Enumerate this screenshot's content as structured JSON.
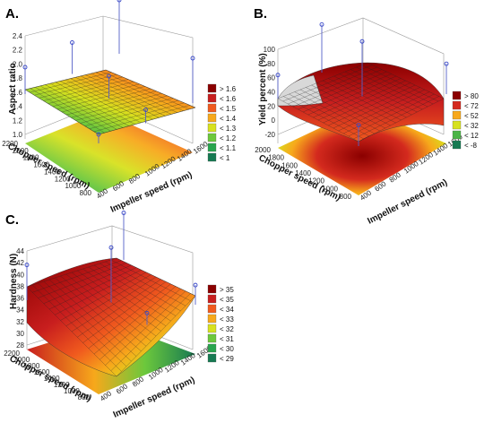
{
  "chart_data": [
    {
      "panel_label": "A.",
      "type": "surface",
      "xlabel": "Impeller speed (rpm)",
      "ylabel": "Chopper speed (rpm)",
      "zlabel": "Aspect ratio",
      "x_ticks": [
        "400",
        "600",
        "800",
        "1000",
        "1200",
        "1400",
        "1600"
      ],
      "y_ticks": [
        "800",
        "1000",
        "1200",
        "1400",
        "1600",
        "1800",
        "2000",
        "2200"
      ],
      "z_ticks": [
        "1.0",
        "1.2",
        "1.4",
        "1.6",
        "1.8",
        "2.0",
        "2.2",
        "2.4"
      ],
      "xlim": [
        400,
        1600
      ],
      "ylim": [
        800,
        2200
      ],
      "zlim": [
        1.0,
        2.4
      ],
      "legend": [
        "> 1.6",
        "< 1.6",
        "< 1.5",
        "< 1.4",
        "< 1.3",
        "< 1.2",
        "< 1.1",
        "< 1"
      ],
      "legend_colors": [
        "#8b0000",
        "#c81e1e",
        "#f05a1e",
        "#f7a81b",
        "#d7e11e",
        "#6cc83c",
        "#28a54e",
        "#167a52"
      ],
      "design_points": [
        {
          "x": 1600,
          "y": 800,
          "z": 2.0
        },
        {
          "x": 1600,
          "y": 2200,
          "z": 2.2
        },
        {
          "x": 400,
          "y": 2200,
          "z": 1.6
        },
        {
          "x": 400,
          "y": 800,
          "z": 1.2
        },
        {
          "x": 1000,
          "y": 1500,
          "z": 1.5
        },
        {
          "x": 1000,
          "y": 2200,
          "z": 1.7
        },
        {
          "x": 1000,
          "y": 800,
          "z": 1.3
        }
      ]
    },
    {
      "panel_label": "B.",
      "type": "surface",
      "xlabel": "Impeller speed (rpm)",
      "ylabel": "Chopper speed (rpm)",
      "zlabel": "Yield percent (%)",
      "x_ticks": [
        "400",
        "600",
        "800",
        "1000",
        "1200",
        "1400",
        "1600"
      ],
      "y_ticks": [
        "800",
        "1000",
        "1200",
        "1400",
        "1600",
        "1800",
        "2000"
      ],
      "z_ticks": [
        "-20",
        "0",
        "20",
        "40",
        "60",
        "80",
        "100"
      ],
      "xlim": [
        400,
        1600
      ],
      "ylim": [
        800,
        2200
      ],
      "zlim": [
        -20,
        100
      ],
      "legend": [
        "> 80",
        "< 72",
        "< 52",
        "< 32",
        "< 12",
        "< -8"
      ],
      "legend_colors": [
        "#8b0000",
        "#d42a1e",
        "#f7a81b",
        "#d7e11e",
        "#4bb447",
        "#167a52"
      ],
      "design_points": [
        {
          "x": 400,
          "y": 2200,
          "z": 25
        },
        {
          "x": 1000,
          "y": 1500,
          "z": 85
        },
        {
          "x": 1600,
          "y": 800,
          "z": 38
        },
        {
          "x": 1000,
          "y": 2200,
          "z": 72
        },
        {
          "x": 400,
          "y": 800,
          "z": 20
        }
      ]
    },
    {
      "panel_label": "C.",
      "type": "surface",
      "xlabel": "Impeller speed (rpm)",
      "ylabel": "Chopper speed (rpm)",
      "zlabel": "Hardness (N)",
      "x_ticks": [
        "400",
        "600",
        "800",
        "1000",
        "1200",
        "1400",
        "1600"
      ],
      "y_ticks": [
        "800",
        "1000",
        "1200",
        "1400",
        "1600",
        "1800",
        "2000",
        "2200"
      ],
      "z_ticks": [
        "28",
        "30",
        "32",
        "34",
        "36",
        "38",
        "40",
        "42",
        "44"
      ],
      "xlim": [
        400,
        1600
      ],
      "ylim": [
        800,
        2200
      ],
      "zlim": [
        28,
        44
      ],
      "legend": [
        "> 35",
        "< 35",
        "< 34",
        "< 33",
        "< 32",
        "< 31",
        "< 30",
        "< 29"
      ],
      "legend_colors": [
        "#8b0000",
        "#c81e1e",
        "#f05a1e",
        "#f7a81b",
        "#d7e11e",
        "#6cc83c",
        "#28a54e",
        "#167a52"
      ],
      "design_points": [
        {
          "x": 400,
          "y": 2200,
          "z": 37
        },
        {
          "x": 1000,
          "y": 1500,
          "z": 42
        },
        {
          "x": 1600,
          "y": 800,
          "z": 33
        },
        {
          "x": 1000,
          "y": 800,
          "z": 31
        },
        {
          "x": 1600,
          "y": 2200,
          "z": 40
        }
      ]
    }
  ]
}
